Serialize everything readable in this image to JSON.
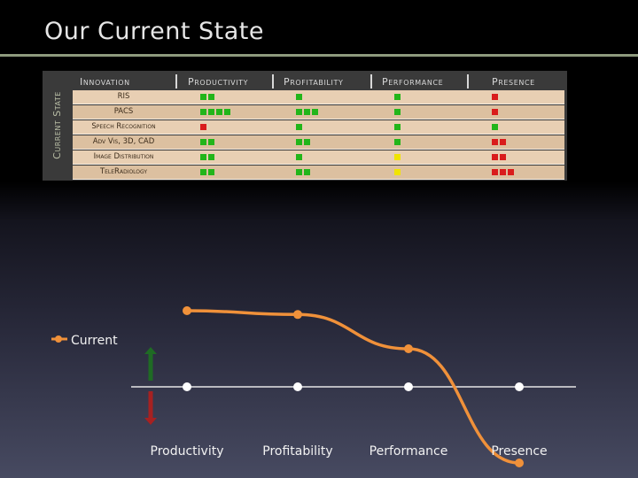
{
  "title": "Our Current State",
  "side_label": "Current State",
  "columns": [
    "Innovation",
    "Productivity",
    "Profitability",
    "Performance",
    "Presence"
  ],
  "rows": [
    {
      "label": "RIS",
      "cells": [
        "gg",
        "g",
        "g",
        "r"
      ]
    },
    {
      "label": "PACS",
      "cells": [
        "gggg",
        "ggg",
        "g",
        "r"
      ]
    },
    {
      "label": "Speech Recognition",
      "cells": [
        "r",
        "g",
        "g",
        "g"
      ]
    },
    {
      "label": "Adv Vis, 3D, CAD",
      "cells": [
        "gg",
        "gg",
        "g",
        "rr"
      ]
    },
    {
      "label": "Image Distribution",
      "cells": [
        "gg",
        "g",
        "y",
        "rr"
      ]
    },
    {
      "label": "TeleRadiology",
      "cells": [
        "gg",
        "gg",
        "y",
        "rrr"
      ]
    }
  ],
  "colors": {
    "green": "#22b51a",
    "red": "#d91c1c",
    "yellow": "#f0e400",
    "line": "#f0913a"
  },
  "chart_data": {
    "type": "line",
    "categories": [
      "Productivity",
      "Profitability",
      "Performance",
      "Presence"
    ],
    "series": [
      {
        "name": "Current",
        "values": [
          1.0,
          0.95,
          0.5,
          -1.0
        ]
      }
    ],
    "baseline": [
      0,
      0,
      0,
      0
    ],
    "ylim": [
      -1.2,
      1.2
    ],
    "legend": "left",
    "indicators": [
      "up-arrow-green",
      "down-arrow-red"
    ]
  }
}
